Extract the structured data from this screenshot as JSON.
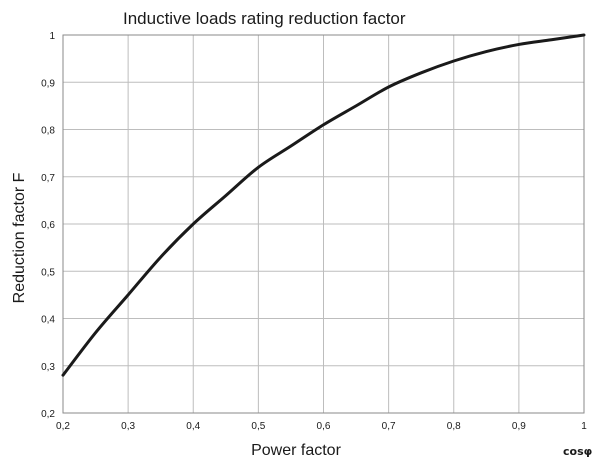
{
  "chart_data": {
    "type": "line",
    "title": "Inductive loads rating reduction factor",
    "xlabel": "Power factor",
    "ylabel": "Reduction factor F",
    "x_axis_end_label": "cosφ",
    "xlim": [
      0.2,
      1.0
    ],
    "ylim": [
      0.2,
      1.0
    ],
    "x_ticks": [
      "0,2",
      "0,3",
      "0,4",
      "0,5",
      "0,6",
      "0,7",
      "0,8",
      "0,9",
      "1"
    ],
    "y_ticks": [
      "0,2",
      "0,3",
      "0,4",
      "0,5",
      "0,6",
      "0,7",
      "0,8",
      "0,9",
      "1"
    ],
    "grid": true,
    "legend": "none",
    "line_color": "#1a1a1a",
    "grid_color": "#bdbdbd",
    "series": [
      {
        "x": [
          0.2,
          0.25,
          0.3,
          0.35,
          0.4,
          0.45,
          0.5,
          0.55,
          0.6,
          0.65,
          0.7,
          0.75,
          0.8,
          0.85,
          0.9,
          0.95,
          1.0
        ],
        "values": [
          0.28,
          0.37,
          0.45,
          0.53,
          0.6,
          0.66,
          0.72,
          0.765,
          0.81,
          0.85,
          0.89,
          0.92,
          0.945,
          0.965,
          0.98,
          0.99,
          1.0
        ]
      }
    ]
  }
}
